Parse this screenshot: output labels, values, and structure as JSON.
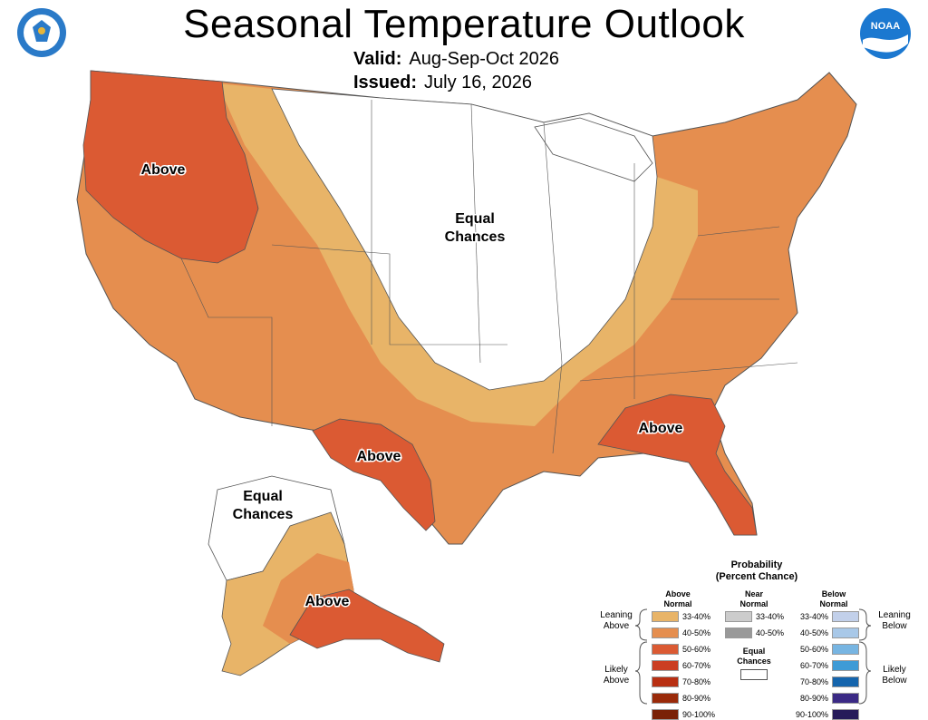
{
  "header": {
    "title": "Seasonal Temperature Outlook",
    "valid_label": "Valid:",
    "valid_value": "Aug-Sep-Oct 2026",
    "issued_label": "Issued:",
    "issued_value": "July 16, 2026"
  },
  "logos": {
    "left": "department-of-commerce-seal",
    "right": "noaa-logo",
    "noaa_text": "NOAA"
  },
  "map_labels": {
    "northwest": "Above",
    "central_1": "Equal",
    "central_2": "Chances",
    "texas": "Above",
    "southeast": "Above",
    "alaska_ec_1": "Equal",
    "alaska_ec_2": "Chances",
    "alaska_above": "Above"
  },
  "colors": {
    "above_33_40": "#E8B468",
    "above_40_50": "#E58E4F",
    "above_50_60": "#DB5A33",
    "above_60_70": "#CB3E22",
    "above_70_80": "#B82F12",
    "above_80_90": "#9A2A0A",
    "above_90_100": "#7A2106",
    "near_33_40": "#CCCCCC",
    "near_40_50": "#999999",
    "below_33_40": "#C2D0EA",
    "below_40_50": "#A8C8E8",
    "below_50_60": "#77B5E2",
    "below_60_70": "#3E9BD6",
    "below_70_80": "#1565AD",
    "below_80_90": "#3B2A85",
    "below_90_100": "#261B5A",
    "noaa_blue": "#1B78D0"
  },
  "legend": {
    "title_1": "Probability",
    "title_2": "(Percent Chance)",
    "above_head_1": "Above",
    "above_head_2": "Normal",
    "near_head_1": "Near",
    "near_head_2": "Normal",
    "below_head_1": "Below",
    "below_head_2": "Normal",
    "above": [
      "33-40%",
      "40-50%",
      "50-60%",
      "60-70%",
      "70-80%",
      "80-90%",
      "90-100%"
    ],
    "near": [
      "33-40%",
      "40-50%"
    ],
    "below": [
      "33-40%",
      "40-50%",
      "50-60%",
      "60-70%",
      "70-80%",
      "80-90%",
      "90-100%"
    ],
    "equal_1": "Equal",
    "equal_2": "Chances",
    "leaning_above_1": "Leaning",
    "leaning_above_2": "Above",
    "likely_above_1": "Likely",
    "likely_above_2": "Above",
    "leaning_below_1": "Leaning",
    "leaning_below_2": "Below",
    "likely_below_1": "Likely",
    "likely_below_2": "Below"
  }
}
